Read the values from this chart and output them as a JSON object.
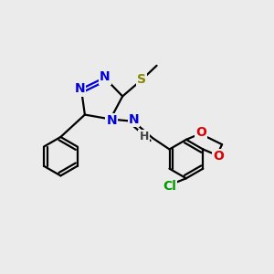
{
  "background_color": "#ebebeb",
  "atom_colors": {
    "N": "#0000dd",
    "S": "#888800",
    "O": "#dd0000",
    "Cl": "#009900",
    "C": "#000000",
    "H": "#444444"
  },
  "figsize": [
    3.0,
    3.0
  ],
  "dpi": 100,
  "lw": 1.6,
  "fontsize": 10
}
